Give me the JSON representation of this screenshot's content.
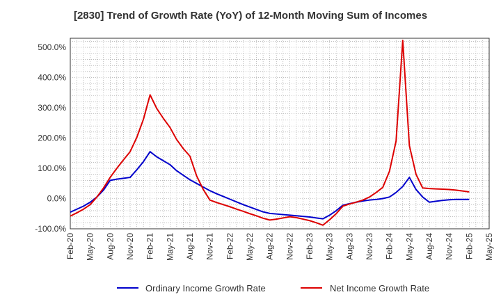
{
  "chart_data": {
    "type": "line",
    "title": "[2830]  Trend of Growth Rate (YoY) of 12-Month Moving Sum of Incomes",
    "xlabel": "",
    "ylabel": "",
    "ylim": [
      -100,
      530
    ],
    "y_ticks": [
      -100,
      0,
      100,
      200,
      300,
      400,
      500
    ],
    "y_tick_labels": [
      "-100.0%",
      "0.0%",
      "100.0%",
      "200.0%",
      "300.0%",
      "400.0%",
      "500.0%"
    ],
    "x_tick_labels": [
      "Feb-20",
      "May-20",
      "Aug-20",
      "Nov-20",
      "Feb-21",
      "May-21",
      "Aug-21",
      "Nov-21",
      "Feb-22",
      "May-22",
      "Aug-22",
      "Nov-22",
      "Feb-23",
      "May-23",
      "Aug-23",
      "Nov-23",
      "Feb-24",
      "May-24",
      "Aug-24",
      "Nov-24",
      "Feb-25",
      "May-25"
    ],
    "x_range_months": [
      0,
      63
    ],
    "grid": true,
    "legend_position": "bottom",
    "series": [
      {
        "name": "Ordinary Income Growth Rate",
        "color": "#0000cc",
        "x": [
          0,
          1,
          2,
          3,
          4,
          5,
          6,
          7,
          8,
          9,
          10,
          11,
          12,
          13,
          14,
          15,
          16,
          17,
          18,
          19,
          20,
          21,
          22,
          23,
          24,
          25,
          26,
          27,
          28,
          29,
          30,
          31,
          32,
          33,
          34,
          35,
          36,
          37,
          38,
          39,
          40,
          41,
          42,
          43,
          44,
          45,
          46,
          47,
          48,
          49,
          50,
          51,
          52,
          53,
          54,
          55,
          56,
          57,
          58,
          59,
          60
        ],
        "values": [
          -45,
          -35,
          -25,
          -12,
          5,
          28,
          60,
          64,
          67,
          70,
          95,
          122,
          155,
          138,
          125,
          112,
          92,
          77,
          62,
          50,
          38,
          26,
          16,
          7,
          -2,
          -11,
          -20,
          -28,
          -36,
          -44,
          -49,
          -51,
          -53,
          -55,
          -57,
          -59,
          -61,
          -64,
          -67,
          -55,
          -40,
          -22,
          -17,
          -12,
          -8,
          -5,
          -3,
          0,
          5,
          20,
          40,
          70,
          30,
          5,
          -12,
          -9,
          -6,
          -4,
          -3,
          -3,
          -3
        ]
      },
      {
        "name": "Net Income Growth Rate",
        "color": "#dd0000",
        "x": [
          0,
          1,
          2,
          3,
          4,
          5,
          6,
          7,
          8,
          9,
          10,
          11,
          12,
          13,
          14,
          15,
          16,
          17,
          18,
          19,
          20,
          21,
          22,
          23,
          24,
          25,
          26,
          27,
          28,
          29,
          30,
          31,
          32,
          33,
          34,
          35,
          36,
          37,
          38,
          39,
          40,
          41,
          42,
          43,
          44,
          45,
          46,
          47,
          48,
          49,
          50,
          51,
          52,
          53,
          54,
          55,
          56,
          57,
          58,
          59,
          60
        ],
        "values": [
          -58,
          -47,
          -35,
          -20,
          5,
          35,
          70,
          100,
          128,
          155,
          202,
          262,
          343,
          298,
          265,
          235,
          195,
          165,
          140,
          75,
          30,
          -5,
          -13,
          -20,
          -27,
          -35,
          -42,
          -50,
          -57,
          -65,
          -71,
          -68,
          -64,
          -60,
          -63,
          -68,
          -73,
          -80,
          -88,
          -70,
          -50,
          -25,
          -18,
          -12,
          -5,
          5,
          20,
          37,
          90,
          190,
          523,
          175,
          80,
          35,
          33,
          32,
          31,
          30,
          28,
          25,
          22
        ]
      }
    ]
  }
}
